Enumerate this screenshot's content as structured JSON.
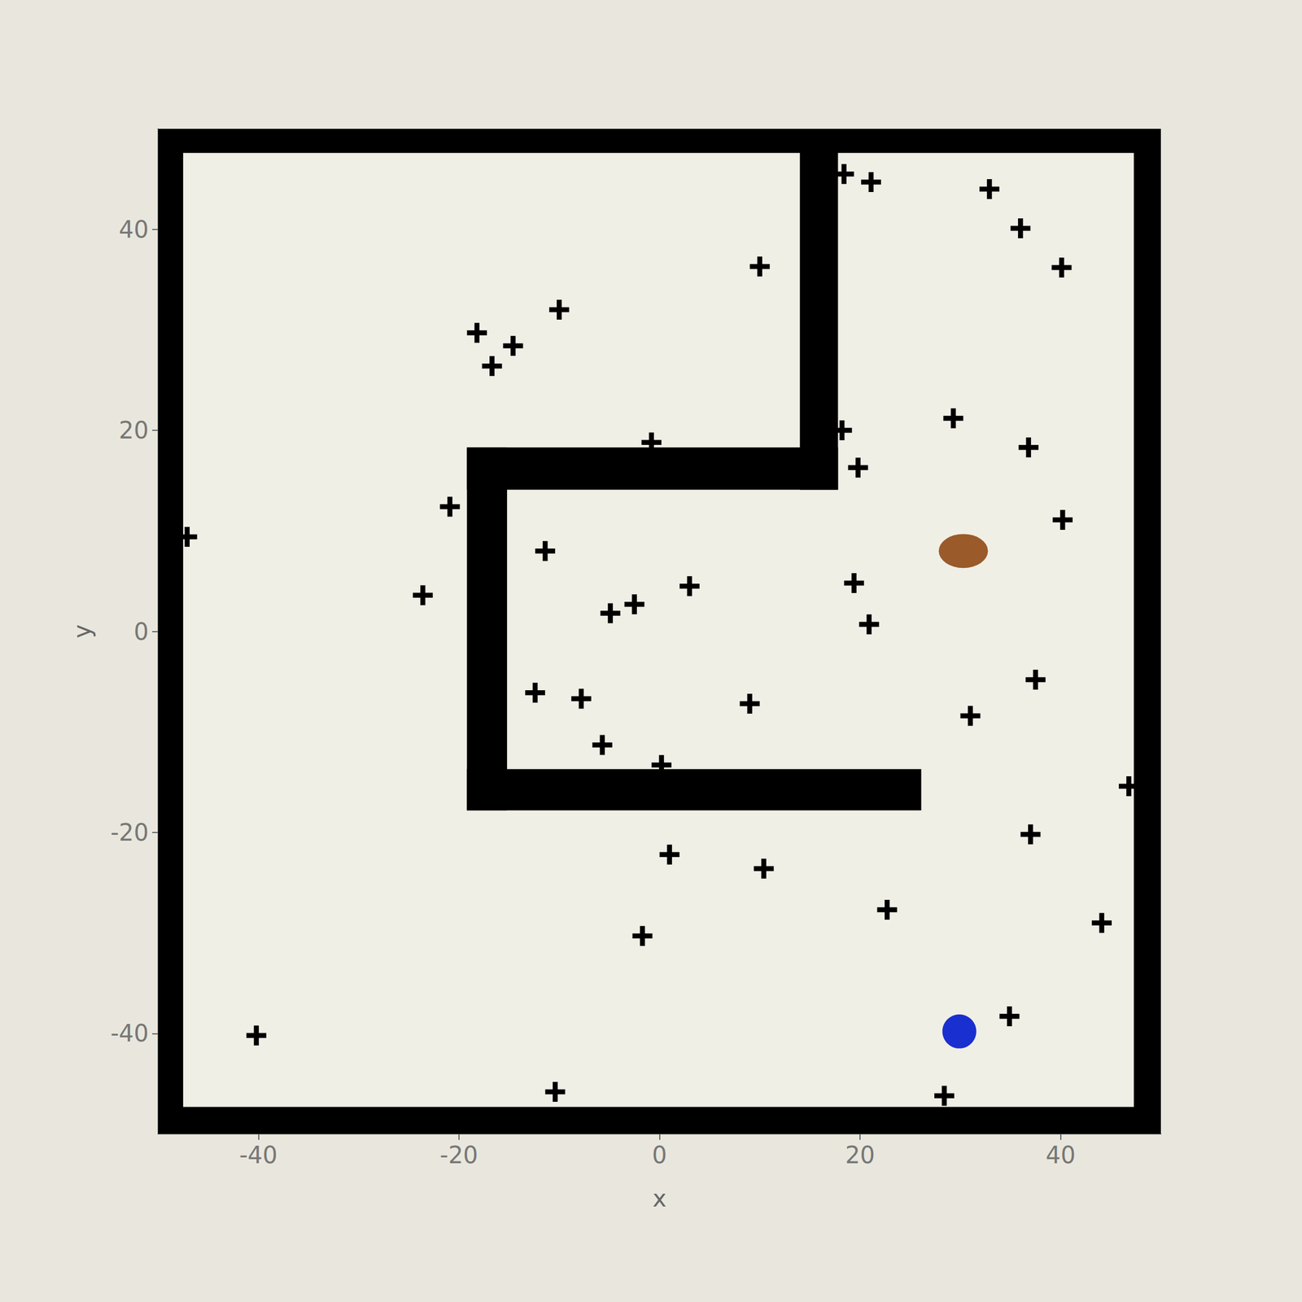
{
  "chart_data": {
    "type": "scatter",
    "xlabel": "x",
    "ylabel": "y",
    "xlim": [
      -50,
      50
    ],
    "ylim": [
      -50,
      50
    ],
    "xticks": [
      -40,
      -20,
      0,
      20,
      40
    ],
    "yticks": [
      -40,
      -20,
      0,
      20,
      40
    ],
    "grid": false,
    "series": [
      {
        "type": "scatter",
        "color": "#000000",
        "marker": "plus",
        "x": [
          18.4,
          21.1,
          32.9,
          36.0,
          40.1,
          10.0,
          -10.0,
          -18.2,
          -14.6,
          -16.7,
          29.3,
          36.8,
          18.2,
          19.8,
          -0.8,
          -20.9,
          40.2,
          -11.4,
          -23.6,
          3.0,
          19.4,
          -4.9,
          -2.5,
          20.9,
          37.5,
          -12.4,
          -7.8,
          9.0,
          31.0,
          -5.7,
          0.2,
          37.0,
          1.0,
          10.4,
          22.7,
          44.1,
          -1.7,
          34.9,
          -40.2,
          -10.4,
          28.4,
          -47.1,
          46.8
        ],
        "y": [
          45.5,
          44.7,
          44.0,
          40.1,
          36.2,
          36.3,
          32.0,
          29.7,
          28.4,
          26.4,
          21.2,
          18.3,
          20.0,
          16.3,
          18.8,
          12.4,
          11.1,
          8.0,
          3.6,
          4.5,
          4.8,
          1.8,
          2.7,
          0.7,
          -4.8,
          -6.1,
          -6.7,
          -7.2,
          -8.4,
          -11.3,
          -13.3,
          -20.2,
          -22.2,
          -23.6,
          -27.7,
          -29.0,
          -30.3,
          -38.3,
          -40.2,
          -45.8,
          -46.2,
          9.4,
          -15.4
        ]
      },
      {
        "type": "walls",
        "color": "#000000",
        "rects": [
          [
            -50,
            -50,
            -47.5,
            50
          ],
          [
            47.3,
            -50,
            50,
            50
          ],
          [
            -50,
            47.6,
            50,
            50
          ],
          [
            -50,
            -50,
            50,
            -47.3
          ],
          [
            14.0,
            14.1,
            17.8,
            48
          ],
          [
            -19.2,
            14.1,
            17.8,
            18.3
          ],
          [
            -19.2,
            -17.8,
            -15.2,
            18.3
          ],
          [
            -19.2,
            -17.8,
            26.1,
            -13.7
          ]
        ]
      },
      {
        "type": "scatter",
        "color": "#1a2fd0",
        "marker": "circle",
        "x": [
          29.9
        ],
        "y": [
          -39.8
        ]
      },
      {
        "type": "scatter",
        "color": "#9a5a2a",
        "marker": "ellipse",
        "x": [
          30.3
        ],
        "y": [
          8.0
        ]
      }
    ]
  }
}
